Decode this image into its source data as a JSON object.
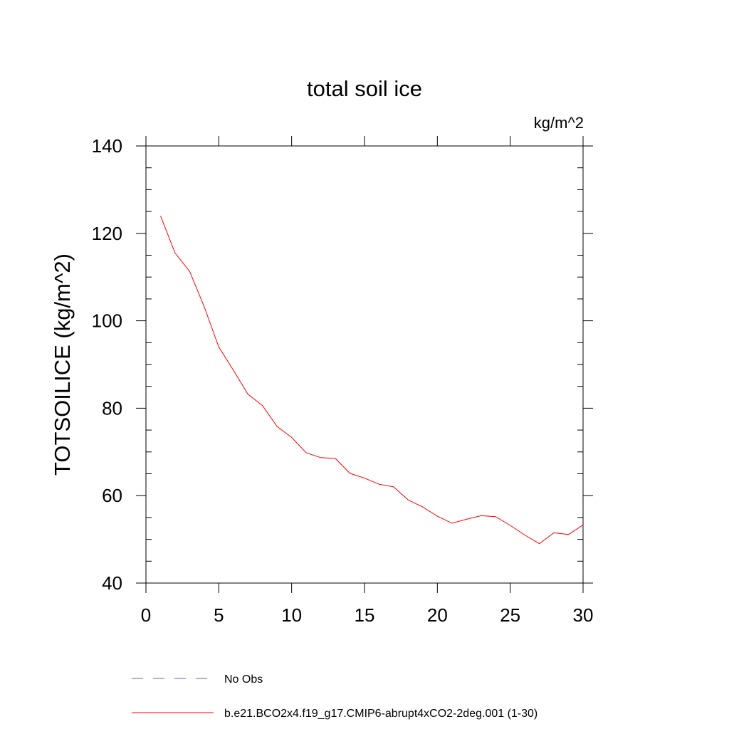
{
  "chart_data": {
    "type": "line",
    "title": "total soil ice",
    "units_label": "kg/m^2",
    "xlabel": "",
    "ylabel": "TOTSOILICE  (kg/m^2)",
    "xlim": [
      0,
      30
    ],
    "ylim": [
      40,
      140
    ],
    "x_ticks": [
      0,
      5,
      10,
      15,
      20,
      25,
      30
    ],
    "y_ticks": [
      40,
      60,
      80,
      100,
      120,
      140
    ],
    "grid": false,
    "legend_position": "bottom",
    "series": [
      {
        "name": "No Obs",
        "color": "#6a5acd",
        "dash": "dashed",
        "x": [],
        "y": []
      },
      {
        "name": "b.e21.BCO2x4.f19_g17.CMIP6-abrupt4xCO2-2deg.001 (1-30)",
        "color": "#ff0000",
        "dash": "solid",
        "x": [
          1,
          2,
          3,
          4,
          5,
          6,
          7,
          8,
          9,
          10,
          11,
          12,
          13,
          14,
          15,
          16,
          17,
          18,
          19,
          20,
          21,
          22,
          23,
          24,
          25,
          26,
          27,
          28,
          29,
          30
        ],
        "y": [
          124,
          115.5,
          111.3,
          103.2,
          94,
          88.7,
          83.2,
          80.6,
          75.8,
          73.3,
          69.8,
          68.7,
          68.5,
          65.1,
          64,
          62.6,
          62,
          59,
          57.4,
          55.3,
          53.7,
          54.6,
          55.4,
          55.2,
          53.2,
          51,
          49,
          51.5,
          51.1,
          53.3
        ]
      }
    ]
  }
}
